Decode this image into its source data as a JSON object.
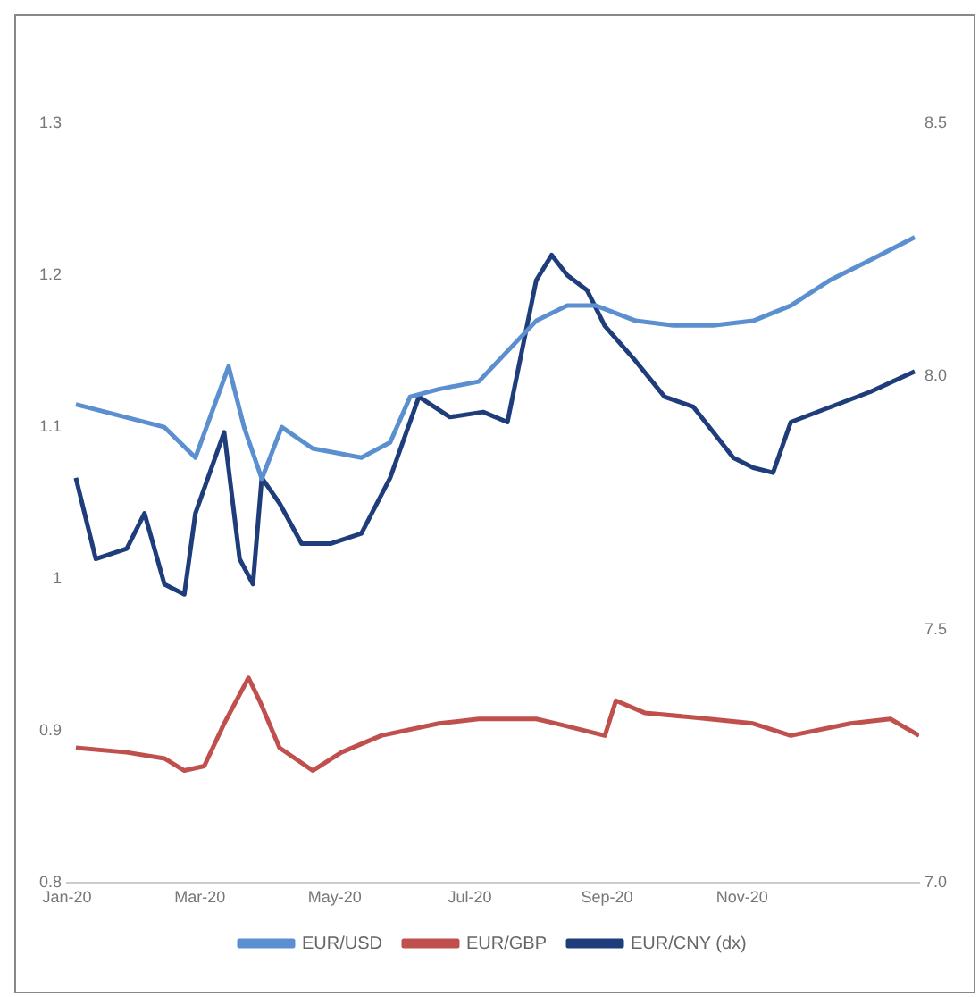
{
  "chart_data": {
    "type": "line",
    "xlim": [
      "2020-01-01",
      "2021-01-20"
    ],
    "xticks": [
      {
        "value": "2020-01-01",
        "label": "Jan-20"
      },
      {
        "value": "2020-03-01",
        "label": "Mar-20"
      },
      {
        "value": "2020-05-01",
        "label": "May-20"
      },
      {
        "value": "2020-07-01",
        "label": "Jul-20"
      },
      {
        "value": "2020-09-01",
        "label": "Sep-20"
      },
      {
        "value": "2020-11-01",
        "label": "Nov-20"
      }
    ],
    "ylim": [
      0.8,
      1.3
    ],
    "yticks": [
      0.8,
      0.9,
      1,
      1.1,
      1.2,
      1.3
    ],
    "y2lim": [
      7.0,
      8.5
    ],
    "y2ticks": [
      {
        "value": 7.0,
        "label": "7.0"
      },
      {
        "value": 7.5,
        "label": "7.5"
      },
      {
        "value": 8.0,
        "label": "8.0"
      },
      {
        "value": 8.5,
        "label": "8.5"
      }
    ],
    "grid": false,
    "legend": "bottom",
    "marker": "none",
    "line_style": "solid",
    "series": [
      {
        "name": "EUR/USD",
        "color": "#5b8fd0",
        "x": [
          "2020-01-05",
          "2020-02-14",
          "2020-02-28",
          "2020-03-14",
          "2020-03-21",
          "2020-03-29",
          "2020-04-07",
          "2020-04-21",
          "2020-05-13",
          "2020-05-26",
          "2020-06-04",
          "2020-06-17",
          "2020-07-05",
          "2020-07-31",
          "2020-08-14",
          "2020-08-27",
          "2020-09-14",
          "2020-10-01",
          "2020-10-19",
          "2020-11-06",
          "2020-11-23",
          "2020-12-11",
          "2020-12-29",
          "2021-01-18"
        ],
        "values": [
          1.115,
          1.1,
          1.08,
          1.14,
          1.1,
          1.066,
          1.1,
          1.086,
          1.08,
          1.09,
          1.12,
          1.125,
          1.13,
          1.17,
          1.18,
          1.18,
          1.17,
          1.167,
          1.167,
          1.17,
          1.18,
          1.197,
          1.21,
          1.225
        ]
      },
      {
        "name": "EUR/GBP",
        "color": "#c0504d",
        "x": [
          "2020-01-05",
          "2020-01-28",
          "2020-02-14",
          "2020-02-23",
          "2020-03-03",
          "2020-03-12",
          "2020-03-23",
          "2020-03-28",
          "2020-04-06",
          "2020-04-21",
          "2020-05-04",
          "2020-05-22",
          "2020-06-17",
          "2020-07-05",
          "2020-07-31",
          "2020-08-09",
          "2020-08-31",
          "2020-09-05",
          "2020-09-18",
          "2020-10-10",
          "2020-11-06",
          "2020-11-23",
          "2020-12-20",
          "2021-01-07",
          "2021-01-20"
        ],
        "values": [
          0.889,
          0.886,
          0.882,
          0.874,
          0.877,
          0.905,
          0.935,
          0.92,
          0.889,
          0.874,
          0.886,
          0.897,
          0.905,
          0.908,
          0.908,
          0.905,
          0.897,
          0.92,
          0.912,
          0.909,
          0.905,
          0.897,
          0.905,
          0.908,
          0.897
        ]
      },
      {
        "name": "EUR/CNY (dx)",
        "color": "#1f3d7a",
        "axis": "y2",
        "x": [
          "2020-01-05",
          "2020-01-14",
          "2020-01-28",
          "2020-02-05",
          "2020-02-14",
          "2020-02-23",
          "2020-02-28",
          "2020-03-12",
          "2020-03-19",
          "2020-03-25",
          "2020-03-29",
          "2020-04-06",
          "2020-04-16",
          "2020-04-29",
          "2020-05-13",
          "2020-05-26",
          "2020-06-08",
          "2020-06-22",
          "2020-07-07",
          "2020-07-18",
          "2020-07-31",
          "2020-08-07",
          "2020-08-14",
          "2020-08-23",
          "2020-08-31",
          "2020-09-14",
          "2020-09-27",
          "2020-10-10",
          "2020-10-19",
          "2020-10-28",
          "2020-11-06",
          "2020-11-15",
          "2020-11-23",
          "2020-12-11",
          "2020-12-29",
          "2021-01-18"
        ],
        "values": [
          7.8,
          7.64,
          7.66,
          7.73,
          7.59,
          7.57,
          7.73,
          7.89,
          7.64,
          7.59,
          7.8,
          7.75,
          7.67,
          7.67,
          7.69,
          7.8,
          7.96,
          7.92,
          7.93,
          7.91,
          8.19,
          8.24,
          8.2,
          8.17,
          8.1,
          8.03,
          7.96,
          7.94,
          7.89,
          7.84,
          7.82,
          7.81,
          7.91,
          7.94,
          7.97,
          8.01
        ]
      }
    ]
  }
}
